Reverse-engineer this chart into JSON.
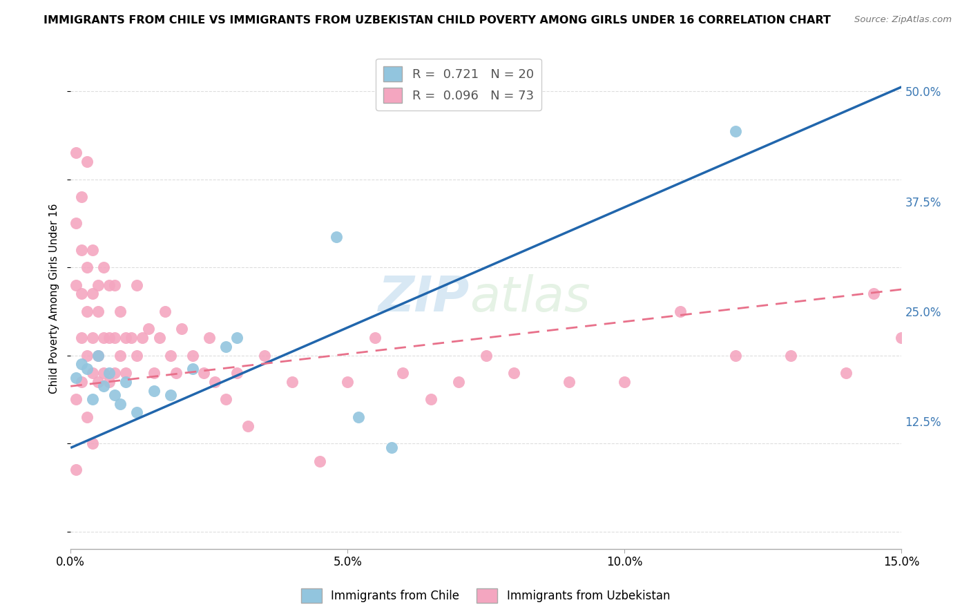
{
  "title": "IMMIGRANTS FROM CHILE VS IMMIGRANTS FROM UZBEKISTAN CHILD POVERTY AMONG GIRLS UNDER 16 CORRELATION CHART",
  "source": "Source: ZipAtlas.com",
  "ylabel": "Child Poverty Among Girls Under 16",
  "xlim": [
    0.0,
    0.15
  ],
  "ylim": [
    -0.02,
    0.55
  ],
  "xticks": [
    0.0,
    0.05,
    0.1,
    0.15
  ],
  "xtick_labels": [
    "0.0%",
    "5.0%",
    "10.0%",
    "15.0%"
  ],
  "yticks": [
    0.0,
    0.125,
    0.25,
    0.375,
    0.5
  ],
  "ytick_labels": [
    "",
    "12.5%",
    "25.0%",
    "37.5%",
    "50.0%"
  ],
  "chile_R": 0.721,
  "chile_N": 20,
  "uzbek_R": 0.096,
  "uzbek_N": 73,
  "chile_color": "#92c5de",
  "uzbek_color": "#f4a6c0",
  "chile_line_color": "#2166ac",
  "uzbek_line_color": "#e8708a",
  "watermark_zip": "ZIP",
  "watermark_atlas": "atlas",
  "chile_line_x0": 0.0,
  "chile_line_y0": 0.095,
  "chile_line_x1": 0.15,
  "chile_line_y1": 0.505,
  "uzbek_line_x0": 0.0,
  "uzbek_line_y0": 0.165,
  "uzbek_line_x1": 0.15,
  "uzbek_line_y1": 0.275,
  "chile_scatter_x": [
    0.001,
    0.002,
    0.003,
    0.004,
    0.005,
    0.006,
    0.007,
    0.008,
    0.009,
    0.01,
    0.012,
    0.015,
    0.018,
    0.022,
    0.028,
    0.03,
    0.048,
    0.052,
    0.058,
    0.12
  ],
  "chile_scatter_y": [
    0.175,
    0.19,
    0.185,
    0.15,
    0.2,
    0.165,
    0.18,
    0.155,
    0.145,
    0.17,
    0.135,
    0.16,
    0.155,
    0.185,
    0.21,
    0.22,
    0.335,
    0.13,
    0.095,
    0.455
  ],
  "uzbek_scatter_x": [
    0.001,
    0.001,
    0.001,
    0.002,
    0.002,
    0.002,
    0.002,
    0.003,
    0.003,
    0.003,
    0.003,
    0.004,
    0.004,
    0.004,
    0.004,
    0.005,
    0.005,
    0.005,
    0.005,
    0.006,
    0.006,
    0.006,
    0.007,
    0.007,
    0.007,
    0.008,
    0.008,
    0.008,
    0.009,
    0.009,
    0.01,
    0.01,
    0.011,
    0.012,
    0.012,
    0.013,
    0.014,
    0.015,
    0.016,
    0.017,
    0.018,
    0.019,
    0.02,
    0.022,
    0.024,
    0.025,
    0.026,
    0.028,
    0.03,
    0.032,
    0.035,
    0.04,
    0.045,
    0.05,
    0.055,
    0.06,
    0.065,
    0.07,
    0.075,
    0.08,
    0.09,
    0.1,
    0.11,
    0.12,
    0.13,
    0.14,
    0.145,
    0.15,
    0.001,
    0.001,
    0.002,
    0.003,
    0.004
  ],
  "uzbek_scatter_y": [
    0.43,
    0.35,
    0.28,
    0.32,
    0.27,
    0.22,
    0.38,
    0.25,
    0.3,
    0.2,
    0.42,
    0.32,
    0.27,
    0.22,
    0.18,
    0.28,
    0.25,
    0.2,
    0.17,
    0.3,
    0.22,
    0.18,
    0.28,
    0.22,
    0.17,
    0.22,
    0.18,
    0.28,
    0.25,
    0.2,
    0.22,
    0.18,
    0.22,
    0.2,
    0.28,
    0.22,
    0.23,
    0.18,
    0.22,
    0.25,
    0.2,
    0.18,
    0.23,
    0.2,
    0.18,
    0.22,
    0.17,
    0.15,
    0.18,
    0.12,
    0.2,
    0.17,
    0.08,
    0.17,
    0.22,
    0.18,
    0.15,
    0.17,
    0.2,
    0.18,
    0.17,
    0.17,
    0.25,
    0.2,
    0.2,
    0.18,
    0.27,
    0.22,
    0.15,
    0.07,
    0.17,
    0.13,
    0.1
  ]
}
